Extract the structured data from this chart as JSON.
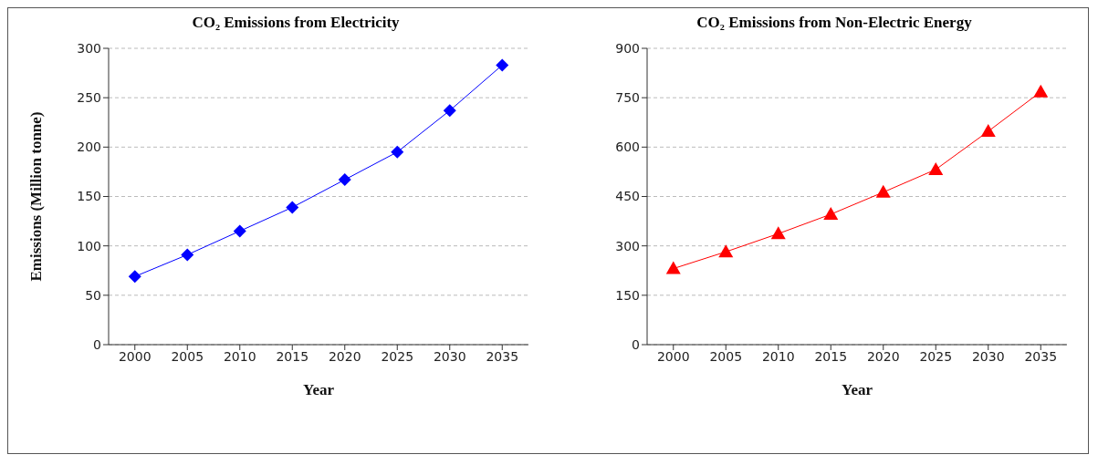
{
  "chart_data": [
    {
      "type": "line",
      "title": "CO₂ Emissions from Electricity",
      "xlabel": "Year",
      "ylabel": "Emissions (Million tonne)",
      "categories": [
        "2000",
        "2005",
        "2010",
        "2015",
        "2020",
        "2025",
        "2030",
        "2035"
      ],
      "series": [
        {
          "color": "#0000ff",
          "values": [
            69,
            91,
            115,
            139,
            167,
            195,
            237,
            283
          ]
        }
      ],
      "ylim": [
        0,
        300
      ],
      "yticks": [
        0,
        50,
        100,
        150,
        200,
        250,
        300
      ],
      "grid": "y",
      "marker": "diamond"
    },
    {
      "type": "line",
      "title": "CO₂ Emissions from Non-Electric Energy",
      "xlabel": "Year",
      "categories": [
        "2000",
        "2005",
        "2010",
        "2015",
        "2020",
        "2025",
        "2030",
        "2035"
      ],
      "series": [
        {
          "color": "#ff0000",
          "values": [
            231,
            282,
            337,
            396,
            463,
            532,
            648,
            768
          ]
        }
      ],
      "ylim": [
        0,
        900
      ],
      "yticks": [
        0,
        150,
        300,
        450,
        600,
        750,
        900
      ],
      "grid": "y",
      "marker": "triangle"
    }
  ]
}
